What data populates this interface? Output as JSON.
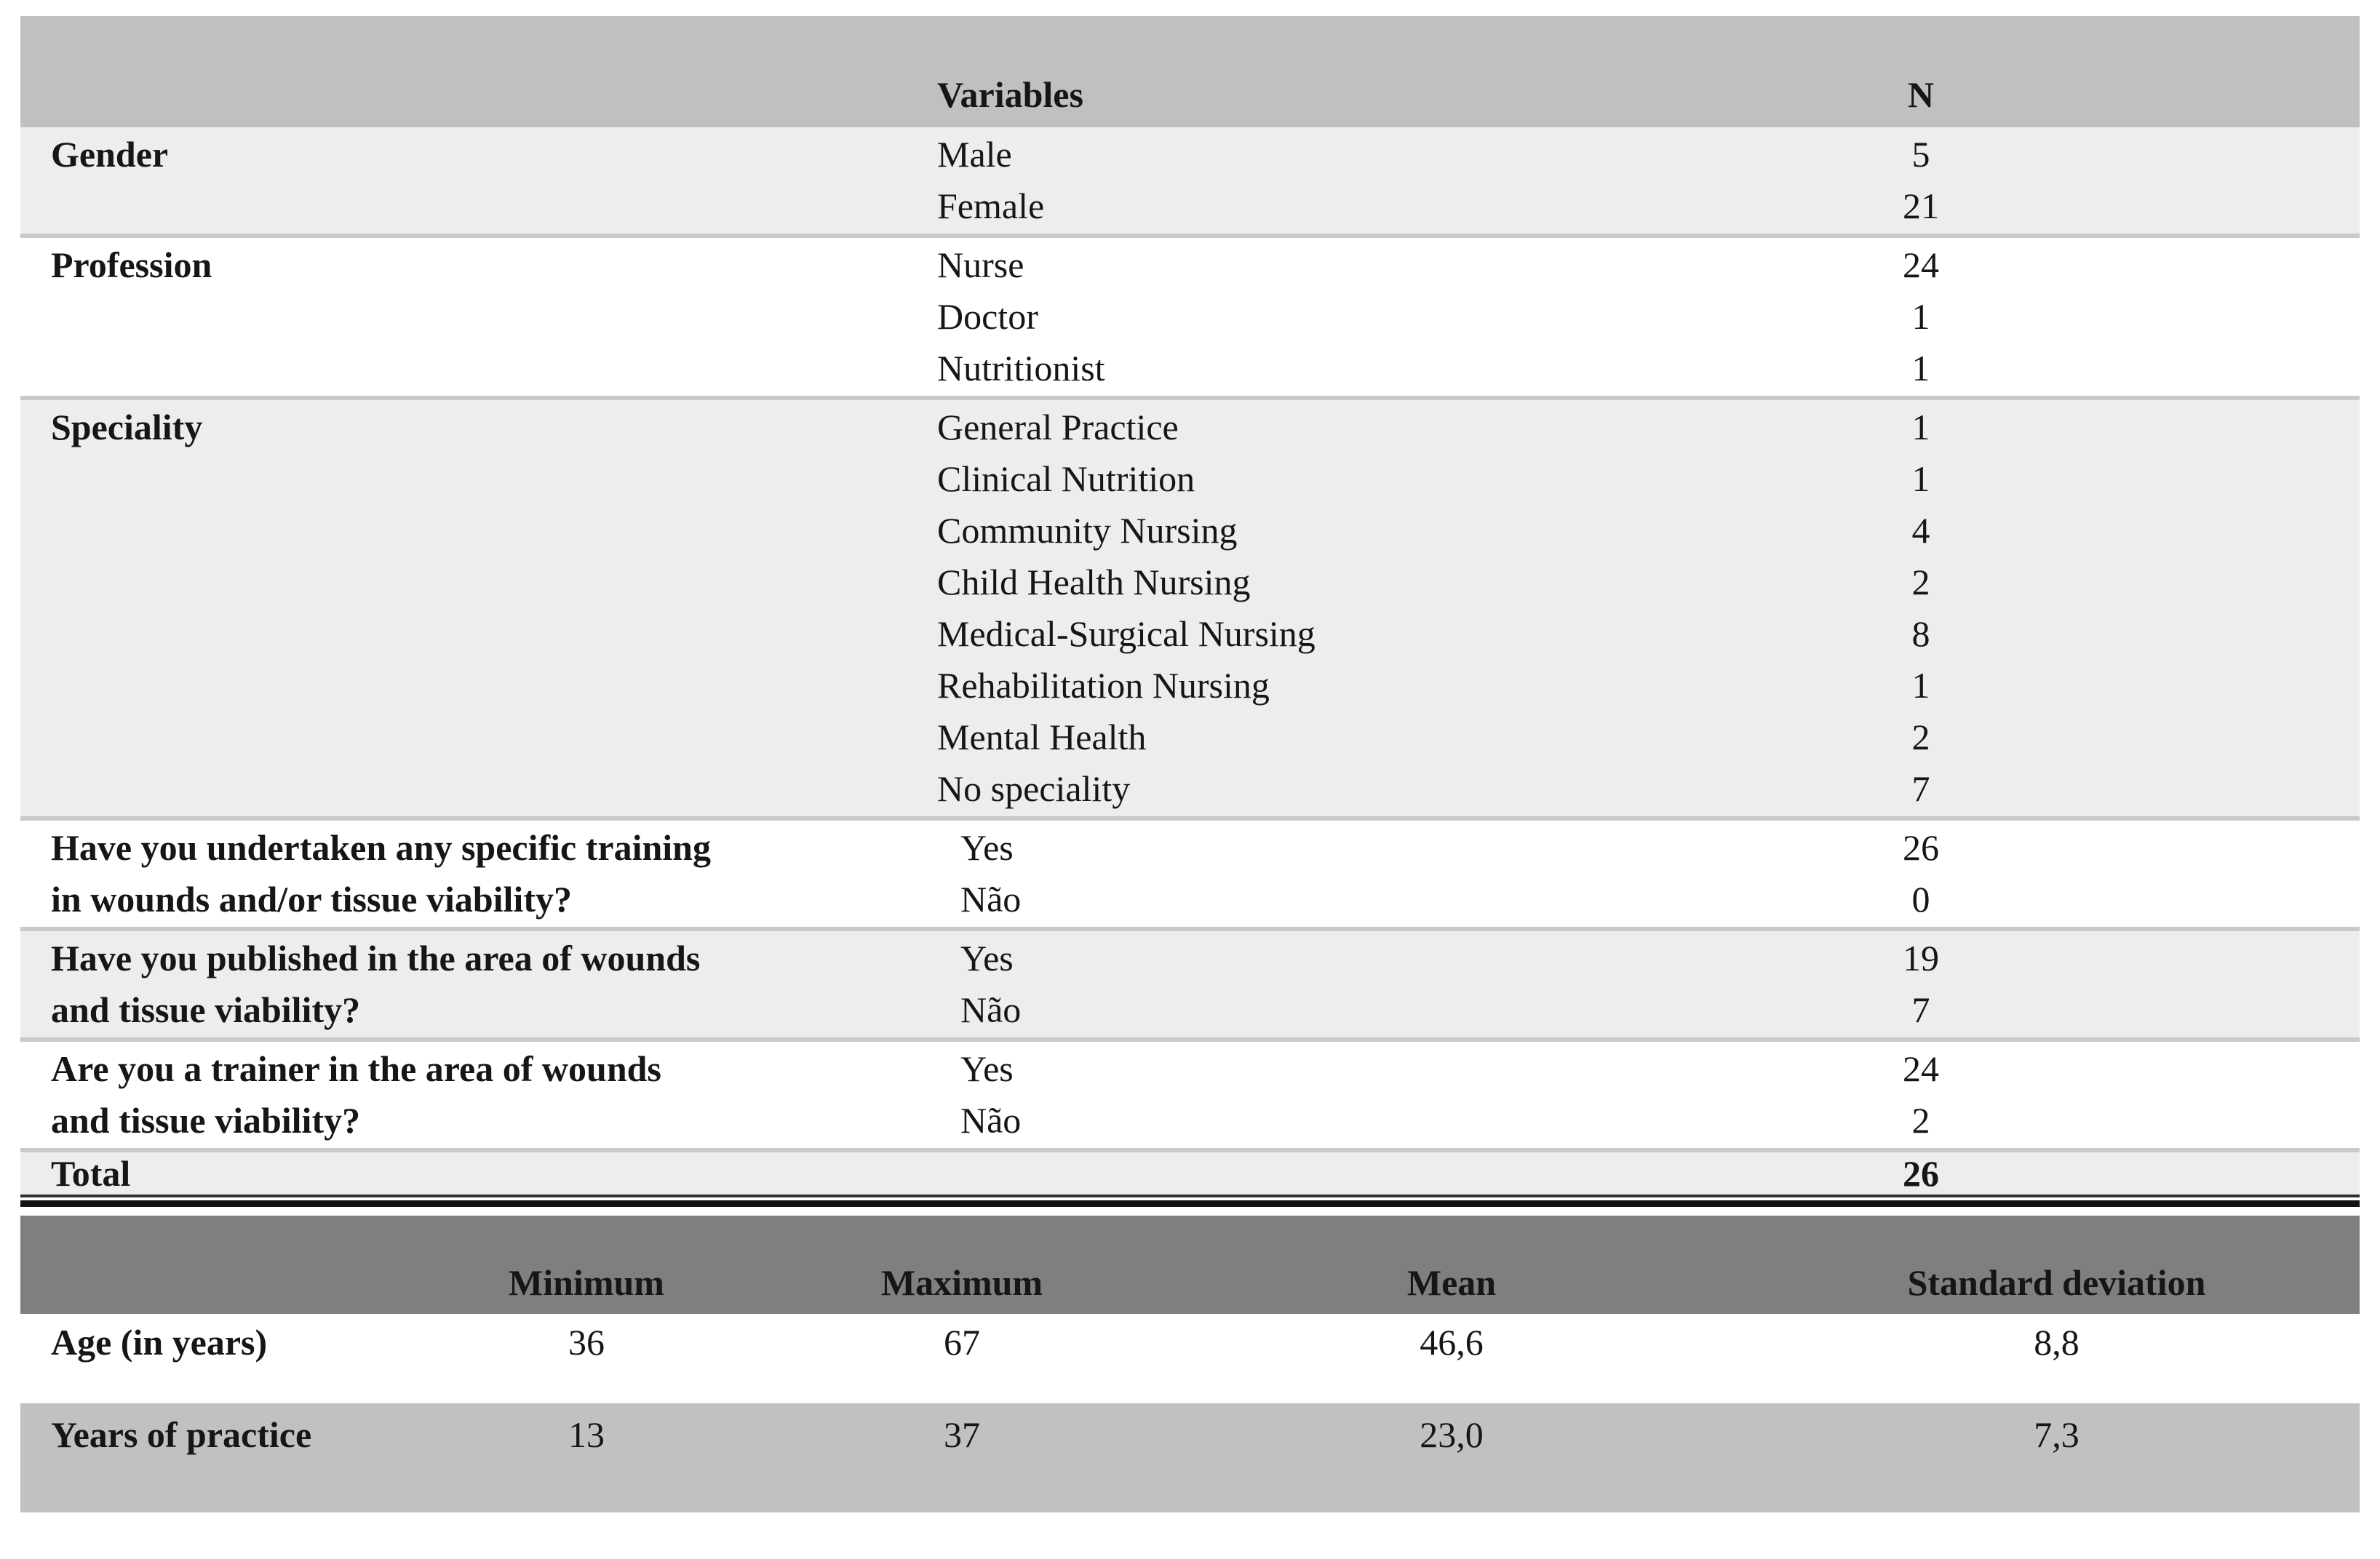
{
  "table1": {
    "header": {
      "variables": "Variables",
      "n": "N"
    },
    "sections": [
      {
        "label_lines": [
          "Gender"
        ],
        "shaded": true,
        "indent_values": false,
        "rows": [
          {
            "variable": "Male",
            "n": "5"
          },
          {
            "variable": "Female",
            "n": "21"
          }
        ]
      },
      {
        "label_lines": [
          "Profession"
        ],
        "shaded": false,
        "indent_values": false,
        "rows": [
          {
            "variable": "Nurse",
            "n": "24"
          },
          {
            "variable": "Doctor",
            "n": "1"
          },
          {
            "variable": "Nutritionist",
            "n": "1"
          }
        ]
      },
      {
        "label_lines": [
          "Speciality"
        ],
        "shaded": true,
        "indent_values": false,
        "rows": [
          {
            "variable": "General Practice",
            "n": "1"
          },
          {
            "variable": "Clinical Nutrition",
            "n": "1"
          },
          {
            "variable": "Community Nursing",
            "n": "4"
          },
          {
            "variable": "Child Health Nursing",
            "n": "2"
          },
          {
            "variable": "Medical-Surgical Nursing",
            "n": "8"
          },
          {
            "variable": "Rehabilitation Nursing",
            "n": "1"
          },
          {
            "variable": "Mental Health",
            "n": "2"
          },
          {
            "variable": "No speciality",
            "n": "7"
          }
        ]
      },
      {
        "label_lines": [
          "Have you undertaken any specific training",
          "in wounds and/or tissue viability?"
        ],
        "shaded": false,
        "indent_values": true,
        "rows": [
          {
            "variable": "Yes",
            "n": "26"
          },
          {
            "variable": "Não",
            "n": "0"
          }
        ]
      },
      {
        "label_lines": [
          "Have you published in the area of wounds",
          "and tissue viability?"
        ],
        "shaded": true,
        "indent_values": true,
        "rows": [
          {
            "variable": "Yes",
            "n": "19"
          },
          {
            "variable": "Não",
            "n": "7"
          }
        ]
      },
      {
        "label_lines": [
          "Are you a trainer in the area of wounds",
          "and tissue viability?"
        ],
        "shaded": false,
        "indent_values": true,
        "rows": [
          {
            "variable": "Yes",
            "n": "24"
          },
          {
            "variable": "Não",
            "n": "2"
          }
        ]
      }
    ],
    "total": {
      "label": "Total",
      "n": "26"
    }
  },
  "table2": {
    "headers": [
      "Minimum",
      "Maximum",
      "Mean",
      "Standard deviation"
    ],
    "rows": [
      {
        "label": "Age (in years)",
        "minimum": "36",
        "maximum": "67",
        "mean": "46,6",
        "standard_deviation": "8,8"
      },
      {
        "label": "Years of practice",
        "minimum": "13",
        "maximum": "37",
        "mean": "23,0",
        "standard_deviation": "7,3"
      }
    ]
  },
  "colors": {
    "table1_header_bg": "#c0c0c0",
    "shaded_section_bg": "#ededed",
    "section_rule": "#c9c9c9",
    "table2_header_bg": "#7f7f7f",
    "table2_alt_row_bg": "#c1c1c1",
    "divider_rule": "#121212"
  }
}
